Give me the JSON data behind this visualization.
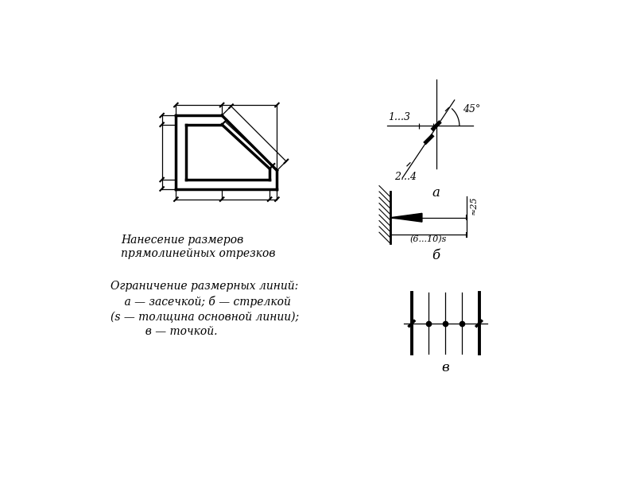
{
  "bg_color": "#ffffff",
  "text_label1": "Нанесение размеров\nпрямолинейных отрезков",
  "text_label2": "Ограничение размерных линий:\n    а — засечкой; б — стрелкой\n(s — толщина основной линии);\n          в — точкой.",
  "label_a": "а",
  "label_b": "б",
  "label_v": "в",
  "label_13": "1...3",
  "label_24": "2...4",
  "label_45": "45°",
  "label_approx25": "≈25",
  "label_610s": "(6...10)s"
}
